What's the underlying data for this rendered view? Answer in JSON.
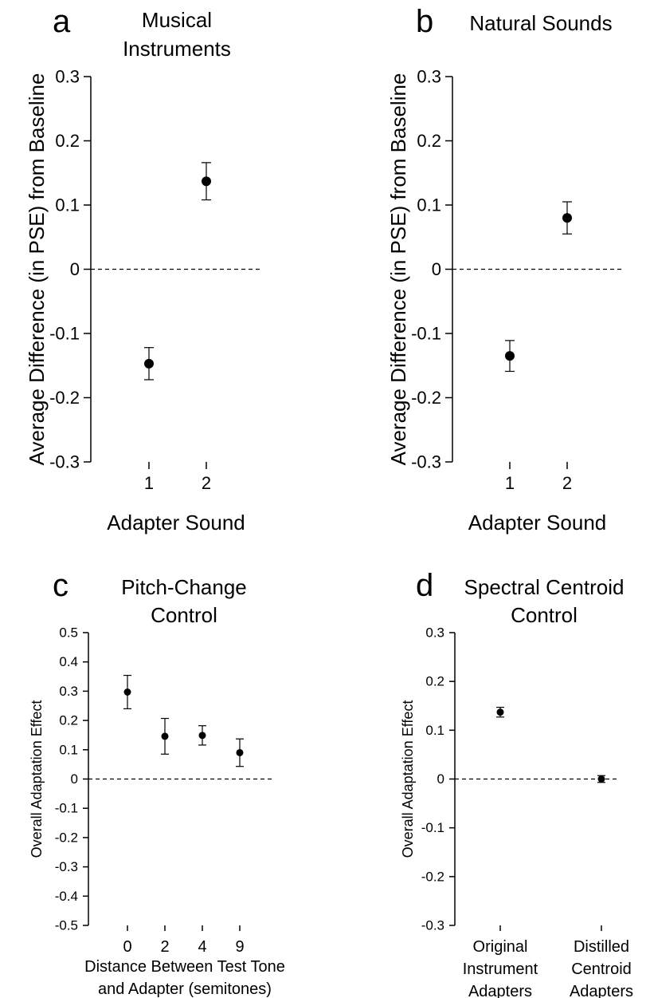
{
  "chart_data": [
    {
      "type": "scatter",
      "panel_letter": "a",
      "title": [
        "Musical",
        "Instruments"
      ],
      "xlabel": "Adapter Sound",
      "ylabel": "Average Difference (in PSE) from Baseline",
      "categories": [
        "1",
        "2"
      ],
      "values": [
        -0.147,
        0.137
      ],
      "errors": [
        0.025,
        0.029
      ],
      "ylim": [
        -0.3,
        0.3
      ],
      "yticks": [
        "0.3",
        "0.2",
        "0.1",
        "0",
        "-0.1",
        "-0.2",
        "-0.3"
      ],
      "reference_line": 0,
      "grid": false
    },
    {
      "type": "scatter",
      "panel_letter": "b",
      "title": [
        "Natural Sounds"
      ],
      "xlabel": "Adapter Sound",
      "ylabel": "Average Difference (in PSE) from Baseline",
      "categories": [
        "1",
        "2"
      ],
      "values": [
        -0.135,
        0.08
      ],
      "errors": [
        0.024,
        0.025
      ],
      "ylim": [
        -0.3,
        0.3
      ],
      "yticks": [
        "0.3",
        "0.2",
        "0.1",
        "0",
        "-0.1",
        "-0.2",
        "-0.3"
      ],
      "reference_line": 0,
      "grid": false
    },
    {
      "type": "scatter",
      "panel_letter": "c",
      "title": [
        "Pitch-Change",
        "Control"
      ],
      "xlabel": [
        "Distance Between Test Tone",
        "and Adapter (semitones)"
      ],
      "ylabel": "Overall Adaptation Effect",
      "categories": [
        "0",
        "2",
        "4",
        "9"
      ],
      "values": [
        0.297,
        0.146,
        0.149,
        0.09
      ],
      "errors": [
        0.057,
        0.061,
        0.033,
        0.047
      ],
      "ylim": [
        -0.5,
        0.5
      ],
      "yticks": [
        "0.5",
        "0.4",
        "0.3",
        "0.2",
        "0.1",
        "0",
        "-0.1",
        "-0.2",
        "-0.3",
        "-0.4",
        "-0.5"
      ],
      "reference_line": 0,
      "grid": false
    },
    {
      "type": "scatter",
      "panel_letter": "d",
      "title": [
        "Spectral Centroid",
        "Control"
      ],
      "xlabel": "",
      "ylabel": "Overall Adaptation Effect",
      "categories": [
        [
          "Original",
          "Instrument",
          "Adapters"
        ],
        [
          "Distilled",
          "Centroid",
          "Adapters"
        ]
      ],
      "values": [
        0.137,
        0.0
      ],
      "errors": [
        0.01,
        0.007
      ],
      "ylim": [
        -0.3,
        0.3
      ],
      "yticks": [
        "0.3",
        "0.2",
        "0.1",
        "0",
        "-0.1",
        "-0.2",
        "-0.3"
      ],
      "reference_line": 0,
      "grid": false
    }
  ]
}
